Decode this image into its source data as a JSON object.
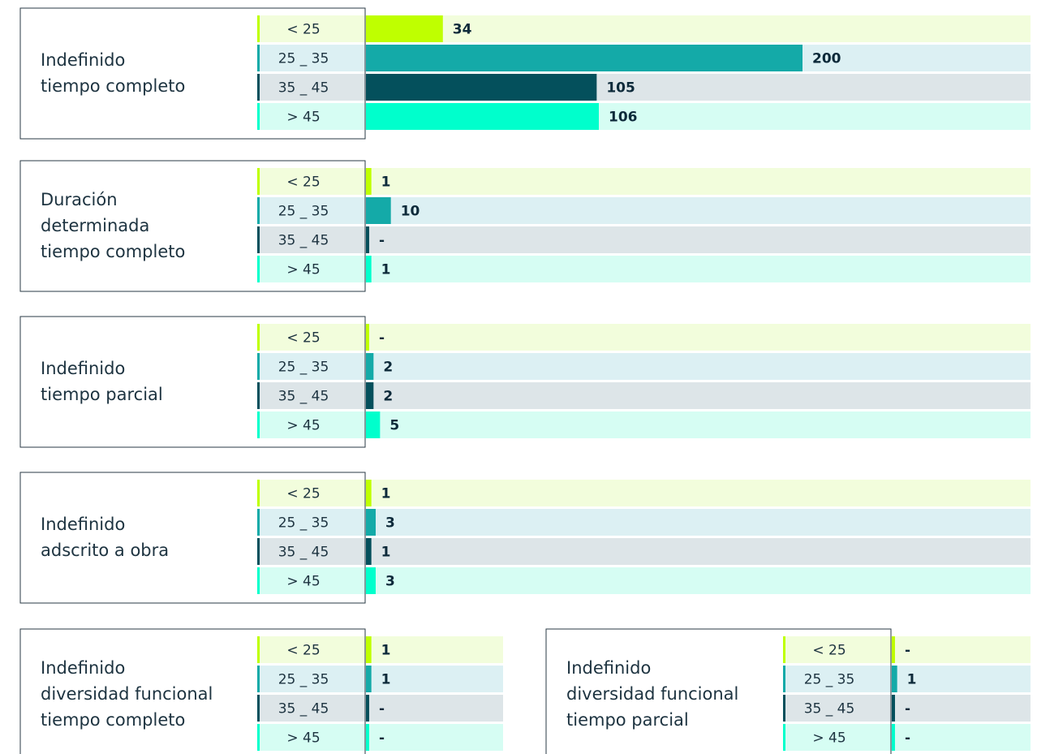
{
  "chart_data": [
    {
      "type": "bar",
      "title": [
        "Indefinido",
        "tiempo completo"
      ],
      "categories": [
        "< 25",
        "25 _ 35",
        "35 _ 45",
        "> 45"
      ],
      "values": [
        34,
        200,
        105,
        106
      ],
      "value_labels": [
        "34",
        "200",
        "105",
        "106"
      ],
      "colors": [
        "#bfff00",
        "#14aaa8",
        "#04505c",
        "#00ffcc"
      ],
      "band_colors": [
        "#f2fddc",
        "#dcf0f3",
        "#dde5e8",
        "#d6fdf3"
      ]
    },
    {
      "type": "bar",
      "title": [
        "Duración",
        "determinada",
        "tiempo completo"
      ],
      "categories": [
        "< 25",
        "25 _ 35",
        "35 _ 45",
        "> 45"
      ],
      "values": [
        1,
        10,
        0,
        1
      ],
      "value_labels": [
        "1",
        "10",
        "-",
        "1"
      ],
      "colors": [
        "#bfff00",
        "#14aaa8",
        "#04505c",
        "#00ffcc"
      ],
      "band_colors": [
        "#f2fddc",
        "#dcf0f3",
        "#dde5e8",
        "#d6fdf3"
      ]
    },
    {
      "type": "bar",
      "title": [
        "Indefinido",
        "tiempo parcial"
      ],
      "categories": [
        "< 25",
        "25 _ 35",
        "35 _ 45",
        "> 45"
      ],
      "values": [
        0,
        2,
        2,
        5
      ],
      "value_labels": [
        "-",
        "2",
        "2",
        "5"
      ],
      "colors": [
        "#bfff00",
        "#14aaa8",
        "#04505c",
        "#00ffcc"
      ],
      "band_colors": [
        "#f2fddc",
        "#dcf0f3",
        "#dde5e8",
        "#d6fdf3"
      ]
    },
    {
      "type": "bar",
      "title": [
        "Indefinido",
        "adscrito a obra"
      ],
      "categories": [
        "< 25",
        "25 _ 35",
        "35 _ 45",
        "> 45"
      ],
      "values": [
        1,
        3,
        1,
        3
      ],
      "value_labels": [
        "1",
        "3",
        "1",
        "3"
      ],
      "colors": [
        "#bfff00",
        "#14aaa8",
        "#04505c",
        "#00ffcc"
      ],
      "band_colors": [
        "#f2fddc",
        "#dcf0f3",
        "#dde5e8",
        "#d6fdf3"
      ]
    },
    {
      "type": "bar",
      "title": [
        "Indefinido",
        "diversidad funcional",
        "tiempo completo"
      ],
      "categories": [
        "< 25",
        "25 _ 35",
        "35 _ 45",
        "> 45"
      ],
      "values": [
        1,
        1,
        0,
        0
      ],
      "value_labels": [
        "1",
        "1",
        "-",
        "-"
      ],
      "colors": [
        "#bfff00",
        "#14aaa8",
        "#04505c",
        "#00ffcc"
      ],
      "band_colors": [
        "#f2fddc",
        "#dcf0f3",
        "#dde5e8",
        "#d6fdf3"
      ]
    },
    {
      "type": "bar",
      "title": [
        "Indefinido",
        "diversidad funcional",
        "tiempo parcial"
      ],
      "categories": [
        "< 25",
        "25 _ 35",
        "35 _ 45",
        "> 45"
      ],
      "values": [
        0,
        1,
        0,
        0
      ],
      "value_labels": [
        "-",
        "1",
        "-",
        "-"
      ],
      "colors": [
        "#bfff00",
        "#14aaa8",
        "#04505c",
        "#00ffcc"
      ],
      "band_colors": [
        "#f2fddc",
        "#dcf0f3",
        "#dde5e8",
        "#d6fdf3"
      ]
    }
  ]
}
